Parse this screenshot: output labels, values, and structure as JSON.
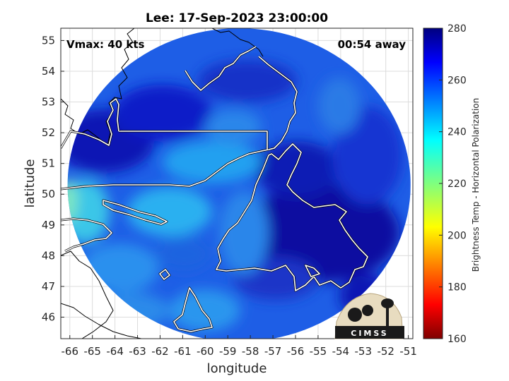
{
  "chart_data": {
    "type": "heatmap",
    "title": "Lee: 17-Sep-2023 23:00:00",
    "xlabel": "longitude",
    "ylabel": "latitude",
    "xlim": [
      -66.4,
      -50.8
    ],
    "ylim": [
      45.3,
      55.4
    ],
    "x_ticks": [
      -66,
      -65,
      -64,
      -63,
      -62,
      -61,
      -60,
      -59,
      -58,
      -57,
      -56,
      -55,
      -54,
      -53,
      -52,
      -51
    ],
    "y_ticks": [
      46,
      47,
      48,
      49,
      50,
      51,
      52,
      53,
      54,
      55
    ],
    "grid": true,
    "annotations": [
      "Vmax: 40 kts",
      "00:54 away"
    ],
    "colorbar": {
      "label": "Brightness Temp - Horizontal Polarization",
      "range": [
        160,
        280
      ],
      "ticks": [
        160,
        180,
        200,
        220,
        240,
        260,
        280
      ],
      "colormap": "jet"
    },
    "swath_center": [
      -58.5,
      50.3
    ],
    "swath_radius_lon": 7.6,
    "swath_radius_lat": 5.1
  },
  "logo": {
    "text": "CIMSS"
  },
  "colors": {
    "background": "#ffffff",
    "coastline": "#ffffff",
    "outside_coastline": "#000000",
    "grid": "#dcdcdc",
    "low_value": "#7f0000",
    "high_value": "#00007f"
  }
}
